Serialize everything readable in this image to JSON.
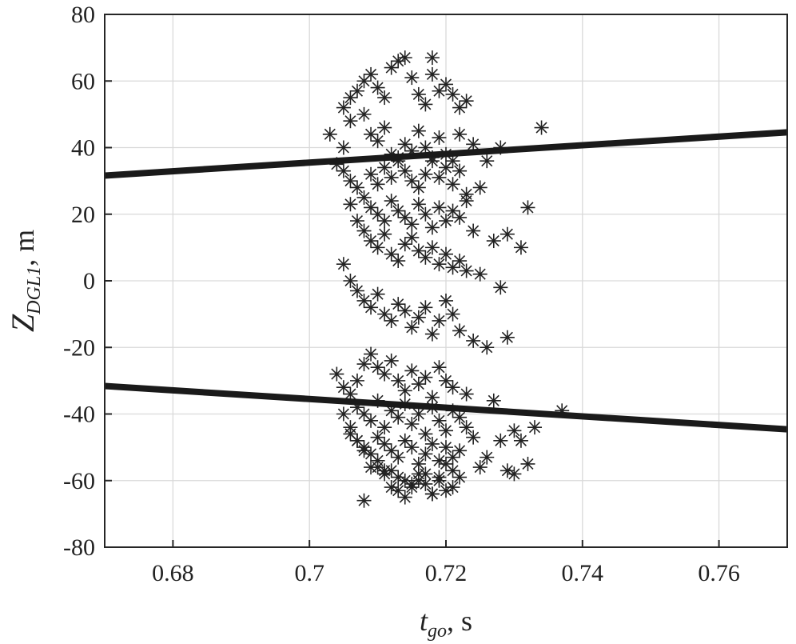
{
  "chart_data": {
    "type": "scatter",
    "title": "",
    "xlabel": {
      "base": "t",
      "sub": "go",
      "unit": ", s"
    },
    "ylabel": {
      "base": "Z",
      "sub": "DGL1",
      "unit": ", m"
    },
    "xlim": [
      0.67,
      0.77
    ],
    "ylim": [
      -80,
      80
    ],
    "x_ticks": [
      0.68,
      0.7,
      0.72,
      0.74,
      0.76
    ],
    "x_tick_labels": [
      "0.68",
      "0.7",
      "0.72",
      "0.74",
      "0.76"
    ],
    "y_ticks": [
      -80,
      -60,
      -40,
      -20,
      0,
      20,
      40,
      60,
      80
    ],
    "y_tick_labels": [
      "-80",
      "-60",
      "-40",
      "-20",
      "0",
      "20",
      "40",
      "60",
      "80"
    ],
    "grid": true,
    "colors": {
      "lines": "#1a1a1a",
      "markers": "#222222",
      "grid": "#d9d9d9"
    },
    "lines": [
      {
        "x": [
          0.67,
          0.77
        ],
        "y": [
          31.6,
          44.6
        ]
      },
      {
        "x": [
          0.67,
          0.77
        ],
        "y": [
          -31.6,
          -44.6
        ]
      }
    ],
    "scatter_marker": "asterisk",
    "scatter": {
      "x": [
        0.703,
        0.705,
        0.706,
        0.707,
        0.708,
        0.709,
        0.71,
        0.711,
        0.712,
        0.713,
        0.714,
        0.715,
        0.716,
        0.717,
        0.718,
        0.719,
        0.72,
        0.721,
        0.722,
        0.723,
        0.705,
        0.706,
        0.708,
        0.709,
        0.71,
        0.711,
        0.712,
        0.713,
        0.714,
        0.715,
        0.716,
        0.717,
        0.718,
        0.719,
        0.72,
        0.721,
        0.722,
        0.724,
        0.726,
        0.728,
        0.704,
        0.705,
        0.706,
        0.707,
        0.709,
        0.71,
        0.711,
        0.712,
        0.713,
        0.714,
        0.715,
        0.716,
        0.717,
        0.718,
        0.719,
        0.72,
        0.721,
        0.722,
        0.723,
        0.725,
        0.708,
        0.709,
        0.71,
        0.711,
        0.712,
        0.713,
        0.714,
        0.715,
        0.716,
        0.717,
        0.718,
        0.719,
        0.72,
        0.721,
        0.722,
        0.723,
        0.724,
        0.727,
        0.729,
        0.731,
        0.706,
        0.707,
        0.708,
        0.709,
        0.71,
        0.711,
        0.712,
        0.713,
        0.714,
        0.715,
        0.716,
        0.717,
        0.718,
        0.719,
        0.72,
        0.721,
        0.722,
        0.723,
        0.725,
        0.728,
        0.705,
        0.706,
        0.707,
        0.708,
        0.709,
        0.71,
        0.711,
        0.712,
        0.713,
        0.714,
        0.715,
        0.716,
        0.717,
        0.718,
        0.719,
        0.72,
        0.721,
        0.722,
        0.724,
        0.726,
        0.704,
        0.705,
        0.706,
        0.707,
        0.708,
        0.709,
        0.71,
        0.711,
        0.712,
        0.713,
        0.714,
        0.715,
        0.716,
        0.717,
        0.718,
        0.719,
        0.72,
        0.721,
        0.723,
        0.727,
        0.707,
        0.708,
        0.709,
        0.71,
        0.711,
        0.712,
        0.713,
        0.714,
        0.715,
        0.716,
        0.717,
        0.718,
        0.719,
        0.72,
        0.721,
        0.722,
        0.723,
        0.724,
        0.728,
        0.73,
        0.706,
        0.707,
        0.708,
        0.709,
        0.71,
        0.711,
        0.712,
        0.713,
        0.714,
        0.715,
        0.716,
        0.717,
        0.718,
        0.719,
        0.72,
        0.721,
        0.722,
        0.725,
        0.729,
        0.732,
        0.705,
        0.706,
        0.707,
        0.708,
        0.709,
        0.71,
        0.711,
        0.712,
        0.713,
        0.714,
        0.715,
        0.716,
        0.717,
        0.718,
        0.719,
        0.72,
        0.721,
        0.722,
        0.726,
        0.737,
        0.712,
        0.713,
        0.714,
        0.715,
        0.716,
        0.717,
        0.718,
        0.711,
        0.71,
        0.719,
        0.72,
        0.721,
        0.73,
        0.731,
        0.733,
        0.734,
        0.732,
        0.729,
        0.708,
        0.718
      ],
      "y": [
        44,
        52,
        55,
        57,
        60,
        62,
        58,
        55,
        64,
        66,
        67,
        61,
        56,
        53,
        62,
        57,
        59,
        56,
        52,
        54,
        40,
        48,
        50,
        44,
        42,
        46,
        38,
        36,
        41,
        39,
        45,
        40,
        37,
        43,
        38,
        36,
        44,
        41,
        36,
        40,
        35,
        33,
        30,
        28,
        32,
        29,
        34,
        31,
        37,
        33,
        30,
        28,
        32,
        36,
        31,
        34,
        29,
        33,
        26,
        28,
        25,
        22,
        20,
        18,
        24,
        21,
        19,
        17,
        23,
        20,
        16,
        22,
        18,
        21,
        19,
        24,
        15,
        12,
        14,
        10,
        23,
        18,
        15,
        12,
        10,
        14,
        8,
        6,
        11,
        13,
        9,
        7,
        10,
        5,
        8,
        4,
        6,
        3,
        2,
        -2,
        5,
        0,
        -3,
        -6,
        -8,
        -4,
        -10,
        -12,
        -7,
        -9,
        -14,
        -11,
        -8,
        -16,
        -12,
        -6,
        -10,
        -15,
        -18,
        -20,
        -28,
        -32,
        -34,
        -30,
        -25,
        -22,
        -26,
        -28,
        -24,
        -30,
        -33,
        -27,
        -31,
        -29,
        -35,
        -26,
        -30,
        -32,
        -34,
        -36,
        -38,
        -40,
        -42,
        -36,
        -44,
        -39,
        -41,
        -37,
        -43,
        -40,
        -46,
        -38,
        -42,
        -45,
        -39,
        -41,
        -44,
        -47,
        -48,
        -45,
        -46,
        -48,
        -50,
        -52,
        -47,
        -49,
        -51,
        -53,
        -48,
        -50,
        -55,
        -52,
        -49,
        -54,
        -50,
        -53,
        -51,
        -56,
        -57,
        -55,
        -40,
        -44,
        -48,
        -51,
        -56,
        -54,
        -58,
        -57,
        -59,
        -60,
        -62,
        -58,
        -61,
        -64,
        -60,
        -63,
        -62,
        -59,
        -53,
        -39,
        -62,
        -63,
        -65,
        -61,
        -60,
        -58,
        -64,
        -57,
        -56,
        -59,
        -55,
        -57,
        -58,
        -48,
        -44,
        46,
        22,
        -17,
        -66,
        67
      ]
    }
  }
}
